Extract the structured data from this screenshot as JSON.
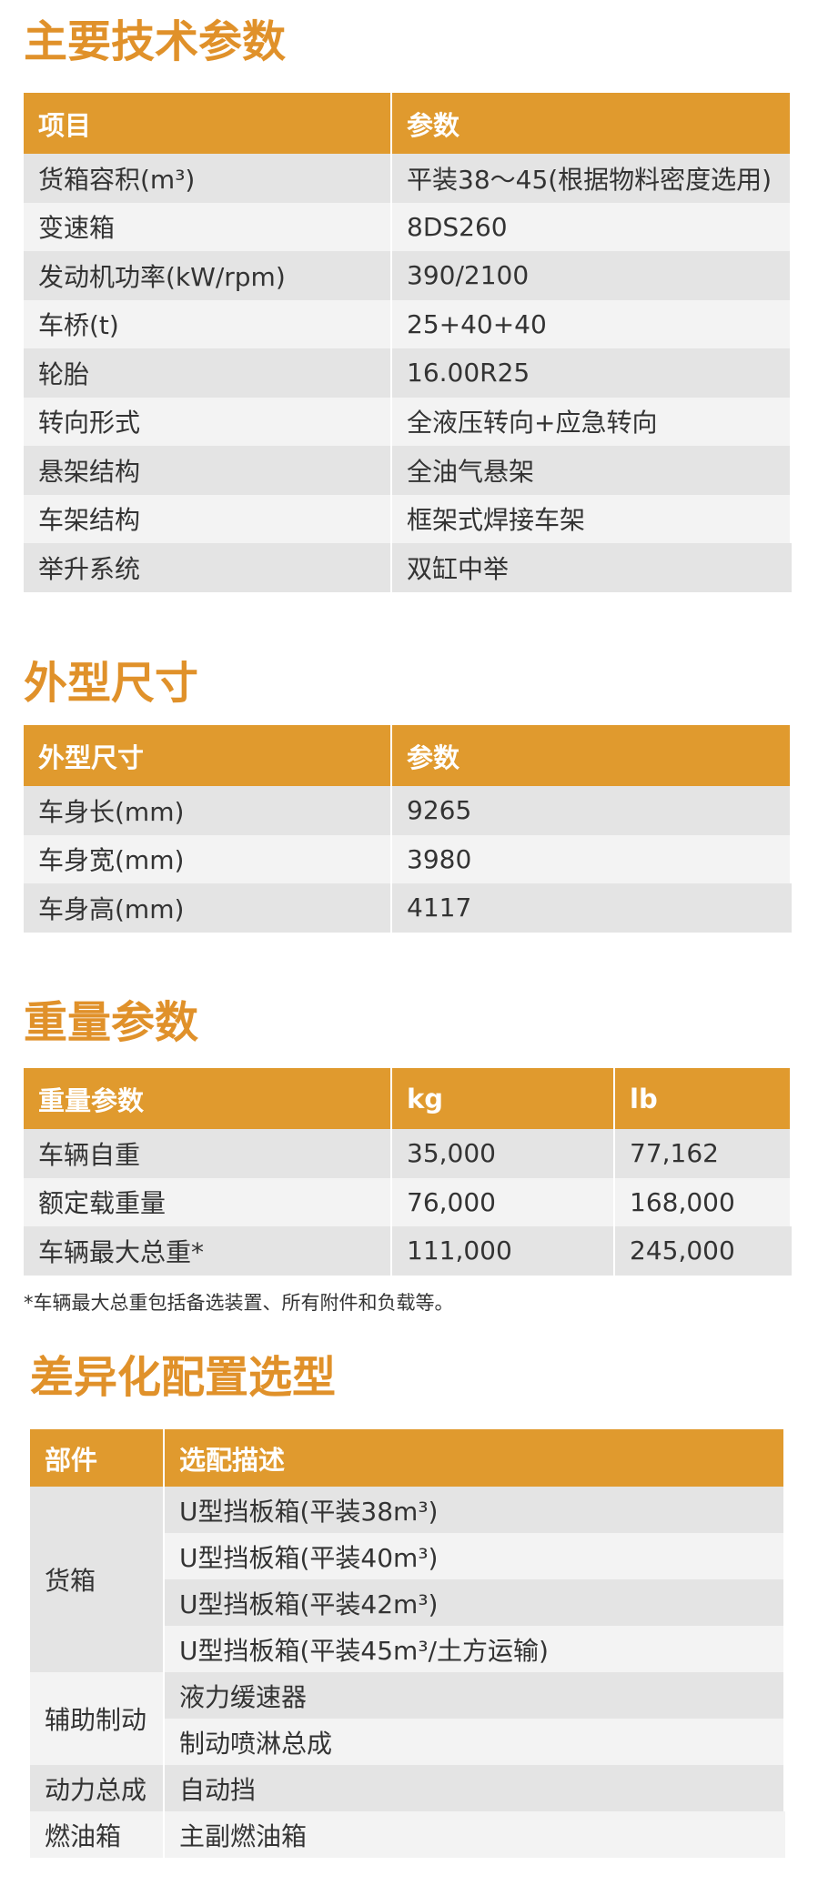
{
  "sections": [
    {
      "title": "主要技术参数",
      "header": [
        "项目",
        "参数"
      ],
      "rows": [
        [
          "货箱容积(m³)",
          "平装38～45(根据物料密度选用)"
        ],
        [
          "变速箱",
          "8DS260"
        ],
        [
          "发动机功率(kW/rpm)",
          "390/2100"
        ],
        [
          "车桥(t)",
          "25+40+40"
        ],
        [
          "轮胎",
          "16.00R25"
        ],
        [
          "转向形式",
          "全液压转向+应急转向"
        ],
        [
          "悬架结构",
          "全油气悬架"
        ],
        [
          "车架结构",
          "框架式焊接车架"
        ],
        [
          "举升系统",
          "双缸中举"
        ]
      ]
    },
    {
      "title": "外型尺寸",
      "header": [
        "外型尺寸",
        "参数"
      ],
      "rows": [
        [
          "车身长(mm)",
          "9265"
        ],
        [
          "车身宽(mm)",
          "3980"
        ],
        [
          "车身高(mm)",
          "4117"
        ]
      ]
    },
    {
      "title": "重量参数",
      "header": [
        "重量参数",
        "kg",
        "lb"
      ],
      "rows": [
        [
          "车辆自重",
          "35,000",
          "77,162"
        ],
        [
          "额定载重量",
          "76,000",
          "168,000"
        ],
        [
          "车辆最大总重*",
          "111,000",
          "245,000"
        ]
      ]
    }
  ],
  "footnote": "*车辆最大总重包括备选装置、所有附件和负载等。",
  "options": {
    "title": "差异化配置选型",
    "header": [
      "部件",
      "选配描述"
    ],
    "groups": [
      {
        "part": "货箱",
        "items": [
          "U型挡板箱(平装38m³)",
          "U型挡板箱(平装40m³)",
          "U型挡板箱(平装42m³)",
          "U型挡板箱(平装45m³/土方运输)"
        ]
      },
      {
        "part": "辅助制动",
        "items": [
          "液力缓速器",
          "制动喷淋总成"
        ]
      },
      {
        "part": "动力总成",
        "items": [
          "自动挡"
        ]
      },
      {
        "part": "燃油箱",
        "items": [
          "主副燃油箱"
        ]
      }
    ]
  }
}
